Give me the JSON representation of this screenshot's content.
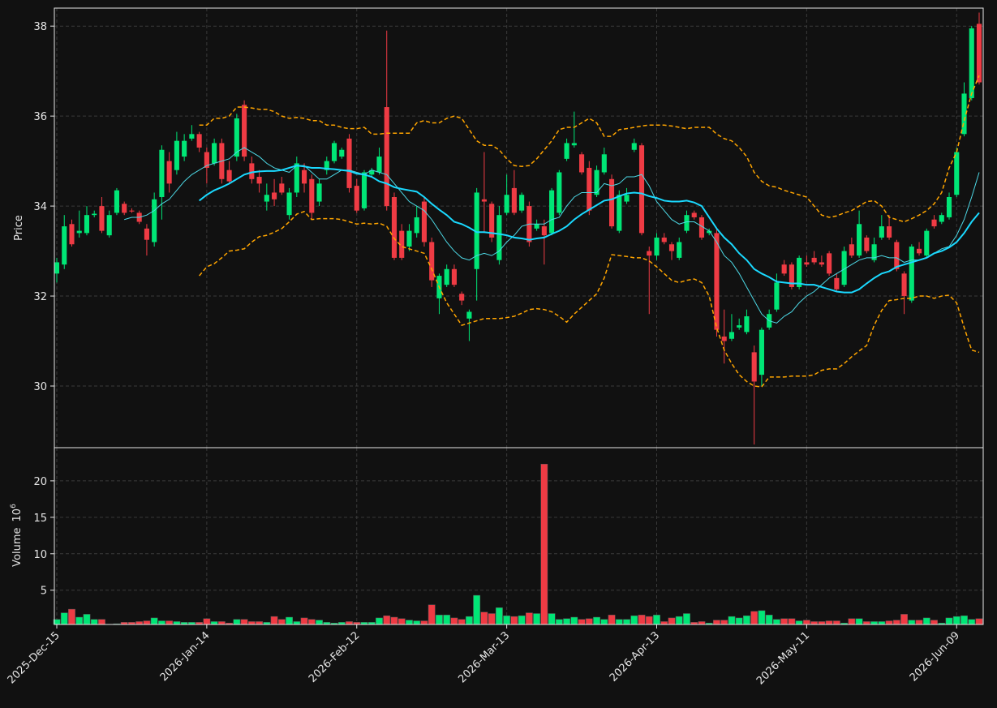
{
  "chart_data": {
    "type": "candlestick",
    "ylabel": "Price",
    "grid": true,
    "up_color": "#00e676",
    "down_color": "#ef3b44",
    "ylim": [
      28.63,
      38.4
    ],
    "yticks": [
      30,
      32,
      34,
      36,
      38
    ],
    "categories": [
      "2025-Dec-15",
      null,
      null,
      null,
      null,
      null,
      null,
      null,
      null,
      null,
      null,
      null,
      null,
      null,
      null,
      null,
      null,
      null,
      null,
      null,
      "2026-Jan-14",
      null,
      null,
      null,
      null,
      null,
      null,
      null,
      null,
      null,
      null,
      null,
      null,
      null,
      null,
      null,
      null,
      null,
      null,
      null,
      "2026-Feb-12",
      null,
      null,
      null,
      null,
      null,
      null,
      null,
      null,
      null,
      null,
      null,
      null,
      null,
      null,
      null,
      null,
      null,
      null,
      null,
      "2026-Mar-13",
      null,
      null,
      null,
      null,
      null,
      null,
      null,
      null,
      null,
      null,
      null,
      null,
      null,
      null,
      null,
      null,
      null,
      null,
      null,
      "2026-Apr-13",
      null,
      null,
      null,
      null,
      null,
      null,
      null,
      null,
      null,
      null,
      null,
      null,
      null,
      null,
      null,
      null,
      null,
      null,
      null,
      "2026-May-11",
      null,
      null,
      null,
      null,
      null,
      null,
      null,
      null,
      null,
      null,
      null,
      null,
      null,
      null,
      null,
      null,
      null,
      null,
      null,
      "2026-Jun-09",
      null,
      null,
      null
    ],
    "open": [
      32.5,
      32.7,
      33.6,
      33.4,
      33.4,
      33.8,
      34.0,
      33.35,
      33.85,
      34.05,
      33.9,
      33.85,
      33.5,
      33.2,
      34.2,
      35.0,
      34.8,
      35.1,
      35.5,
      35.6,
      35.2,
      34.95,
      35.4,
      34.8,
      35.1,
      36.25,
      34.95,
      34.65,
      34.1,
      34.3,
      34.5,
      33.8,
      34.3,
      34.8,
      34.6,
      34.1,
      34.8,
      35.0,
      35.1,
      35.5,
      34.45,
      33.95,
      34.7,
      34.75,
      36.2,
      34.2,
      33.45,
      33.1,
      33.4,
      34.1,
      33.2,
      31.95,
      32.25,
      32.6,
      32.05,
      31.5,
      32.6,
      34.15,
      34.05,
      32.8,
      33.85,
      34.4,
      33.9,
      34.0,
      33.5,
      33.55,
      33.4,
      33.85,
      35.05,
      35.35,
      35.15,
      34.85,
      34.25,
      34.75,
      34.6,
      33.45,
      34.1,
      35.25,
      35.35,
      33.0,
      32.9,
      33.3,
      33.15,
      32.85,
      33.45,
      33.85,
      33.75,
      33.4,
      33.4,
      31.1,
      31.05,
      31.3,
      31.2,
      30.75,
      30.25,
      31.3,
      31.7,
      32.7,
      32.7,
      32.2,
      32.75,
      32.85,
      32.75,
      32.95,
      32.4,
      32.25,
      33.15,
      32.9,
      33.3,
      32.8,
      33.3,
      33.55,
      33.2,
      32.5,
      31.9,
      33.05,
      32.9,
      33.7,
      33.65,
      33.75,
      34.25,
      35.6,
      36.4,
      38.05
    ],
    "high": [
      32.85,
      33.8,
      33.7,
      33.9,
      34.0,
      33.9,
      34.2,
      33.9,
      34.4,
      34.1,
      33.95,
      33.9,
      33.6,
      34.3,
      35.35,
      35.2,
      35.65,
      35.6,
      35.8,
      35.65,
      35.3,
      35.5,
      35.5,
      35.0,
      36.05,
      36.35,
      35.1,
      34.8,
      34.5,
      34.6,
      34.65,
      34.4,
      35.1,
      34.95,
      34.7,
      34.6,
      35.1,
      35.45,
      35.3,
      35.6,
      34.6,
      34.8,
      34.85,
      35.3,
      37.9,
      34.3,
      33.6,
      33.6,
      34.0,
      34.2,
      33.3,
      32.5,
      32.7,
      32.7,
      32.1,
      31.7,
      34.4,
      35.2,
      34.1,
      34.0,
      34.7,
      34.8,
      34.3,
      34.1,
      33.7,
      33.7,
      34.4,
      34.8,
      35.5,
      36.1,
      35.2,
      35.0,
      34.9,
      35.3,
      34.7,
      34.35,
      34.4,
      35.5,
      35.4,
      33.1,
      33.4,
      33.4,
      33.2,
      33.3,
      33.9,
      33.9,
      33.8,
      33.5,
      33.5,
      31.7,
      31.6,
      31.5,
      31.7,
      30.9,
      31.3,
      31.7,
      32.5,
      32.8,
      32.75,
      32.9,
      32.9,
      33.0,
      32.9,
      33.0,
      32.5,
      33.1,
      33.3,
      33.9,
      33.35,
      33.3,
      33.8,
      33.8,
      33.25,
      32.55,
      33.15,
      33.2,
      33.5,
      33.8,
      33.85,
      34.3,
      35.3,
      36.75,
      38.0,
      38.3
    ],
    "low": [
      32.3,
      32.6,
      33.1,
      33.3,
      33.35,
      33.75,
      33.4,
      33.3,
      33.8,
      33.8,
      33.85,
      33.6,
      32.9,
      33.1,
      33.7,
      34.3,
      34.7,
      35.0,
      35.45,
      35.2,
      34.5,
      34.9,
      34.5,
      34.5,
      35.0,
      35.0,
      34.5,
      34.3,
      33.9,
      34.0,
      34.25,
      33.7,
      34.2,
      34.3,
      33.7,
      34.0,
      34.7,
      34.95,
      35.05,
      34.3,
      33.85,
      33.9,
      34.65,
      34.7,
      33.9,
      32.8,
      32.8,
      33.0,
      33.3,
      33.1,
      32.2,
      31.6,
      32.2,
      32.2,
      31.8,
      31.0,
      31.9,
      33.4,
      33.2,
      32.7,
      33.8,
      33.8,
      33.85,
      33.1,
      33.45,
      32.7,
      33.35,
      33.8,
      35.0,
      35.3,
      34.7,
      33.8,
      34.2,
      34.7,
      33.5,
      33.4,
      34.05,
      35.2,
      33.35,
      31.6,
      32.8,
      33.15,
      32.8,
      32.8,
      33.4,
      33.7,
      33.25,
      33.35,
      31.1,
      30.5,
      31.0,
      31.25,
      31.15,
      28.7,
      30.0,
      31.25,
      31.65,
      32.45,
      32.15,
      32.15,
      32.65,
      32.7,
      32.65,
      32.45,
      32.1,
      32.2,
      32.85,
      32.85,
      32.95,
      32.75,
      33.25,
      33.25,
      32.55,
      31.6,
      31.85,
      32.9,
      32.85,
      33.5,
      33.6,
      33.7,
      34.2,
      35.55,
      36.35,
      36.7
    ],
    "close": [
      32.75,
      33.55,
      33.15,
      33.45,
      33.8,
      33.83,
      33.45,
      33.8,
      34.35,
      33.85,
      33.88,
      33.65,
      33.25,
      34.15,
      35.25,
      34.5,
      35.45,
      35.45,
      35.6,
      35.3,
      34.85,
      35.4,
      34.6,
      34.55,
      35.95,
      35.1,
      34.6,
      34.5,
      34.25,
      34.15,
      34.3,
      34.3,
      34.95,
      34.5,
      33.85,
      34.5,
      35.0,
      35.4,
      35.25,
      34.4,
      33.9,
      34.75,
      34.8,
      35.1,
      34.0,
      32.85,
      32.85,
      33.45,
      33.75,
      33.2,
      32.35,
      32.45,
      32.6,
      32.25,
      31.9,
      31.65,
      34.3,
      34.1,
      33.3,
      33.8,
      34.25,
      33.85,
      34.25,
      33.2,
      33.6,
      33.35,
      34.35,
      34.75,
      35.4,
      35.4,
      34.75,
      33.9,
      34.8,
      35.15,
      33.55,
      34.25,
      34.25,
      35.4,
      33.4,
      32.9,
      33.3,
      33.2,
      33.0,
      33.2,
      33.8,
      33.75,
      33.3,
      33.45,
      31.25,
      31.0,
      31.2,
      31.35,
      31.55,
      30.1,
      31.25,
      31.6,
      32.3,
      32.5,
      32.2,
      32.85,
      32.7,
      32.75,
      32.7,
      32.5,
      32.15,
      33.0,
      32.9,
      33.6,
      33.0,
      33.15,
      33.55,
      33.3,
      32.6,
      32.0,
      33.1,
      32.95,
      33.45,
      33.55,
      33.8,
      34.2,
      35.2,
      36.5,
      37.95,
      36.75
    ],
    "overlays": [
      {
        "color": "#4dd9e6",
        "width": 1,
        "dashed": false,
        "values": [
          null,
          null,
          null,
          null,
          null,
          null,
          null,
          null,
          null,
          33.7,
          33.75,
          33.75,
          33.8,
          33.9,
          34.05,
          34.15,
          34.35,
          34.55,
          34.7,
          34.8,
          34.9,
          34.95,
          35.0,
          35.05,
          35.2,
          35.3,
          35.2,
          35.1,
          34.95,
          34.85,
          34.8,
          34.75,
          34.9,
          34.9,
          34.75,
          34.6,
          34.6,
          34.7,
          34.8,
          34.8,
          34.75,
          34.7,
          34.8,
          34.75,
          34.7,
          34.5,
          34.3,
          34.1,
          34.0,
          33.9,
          33.7,
          33.45,
          33.2,
          33.0,
          32.85,
          32.8,
          32.9,
          32.95,
          32.9,
          33.0,
          33.2,
          33.35,
          33.55,
          33.6,
          33.6,
          33.6,
          33.7,
          33.75,
          34.0,
          34.2,
          34.3,
          34.3,
          34.3,
          34.5,
          34.45,
          34.5,
          34.65,
          34.65,
          34.7,
          34.45,
          34.1,
          33.9,
          33.7,
          33.6,
          33.65,
          33.65,
          33.55,
          33.45,
          33.2,
          32.9,
          32.75,
          32.5,
          32.2,
          31.9,
          31.6,
          31.45,
          31.4,
          31.55,
          31.65,
          31.85,
          32.0,
          32.1,
          32.25,
          32.4,
          32.5,
          32.6,
          32.7,
          32.8,
          32.85,
          32.85,
          32.9,
          32.85,
          32.85,
          32.75,
          32.8,
          32.8,
          32.85,
          32.95,
          33.05,
          33.1,
          33.35,
          33.7,
          34.2,
          34.75
        ]
      },
      {
        "color": "#1ad9ff",
        "width": 2,
        "dashed": false,
        "values": [
          null,
          null,
          null,
          null,
          null,
          null,
          null,
          null,
          null,
          null,
          null,
          null,
          null,
          null,
          null,
          null,
          null,
          null,
          null,
          34.12,
          34.25,
          34.35,
          34.42,
          34.5,
          34.6,
          34.7,
          34.75,
          34.77,
          34.78,
          34.78,
          34.8,
          34.85,
          34.9,
          34.88,
          34.85,
          34.85,
          34.83,
          34.82,
          34.8,
          34.78,
          34.72,
          34.7,
          34.65,
          34.55,
          34.5,
          34.42,
          34.38,
          34.35,
          34.32,
          34.2,
          34.05,
          33.92,
          33.8,
          33.65,
          33.6,
          33.52,
          33.42,
          33.42,
          33.4,
          33.38,
          33.35,
          33.3,
          33.28,
          33.25,
          33.28,
          33.3,
          33.38,
          33.45,
          33.55,
          33.7,
          33.82,
          33.92,
          34.02,
          34.12,
          34.15,
          34.22,
          34.28,
          34.3,
          34.28,
          34.22,
          34.18,
          34.12,
          34.1,
          34.1,
          34.12,
          34.08,
          34.0,
          33.75,
          33.5,
          33.3,
          33.15,
          32.95,
          32.8,
          32.6,
          32.5,
          32.42,
          32.32,
          32.3,
          32.28,
          32.28,
          32.25,
          32.25,
          32.2,
          32.15,
          32.1,
          32.08,
          32.08,
          32.15,
          32.28,
          32.4,
          32.5,
          32.55,
          32.65,
          32.7,
          32.75,
          32.8,
          32.85,
          32.95,
          33.0,
          33.08,
          33.2,
          33.4,
          33.65,
          33.85
        ]
      },
      {
        "color": "#ffa500",
        "width": 1.5,
        "dashed": true,
        "values": [
          null,
          null,
          null,
          null,
          null,
          null,
          null,
          null,
          null,
          null,
          null,
          null,
          null,
          null,
          null,
          null,
          null,
          null,
          null,
          35.8,
          35.8,
          35.95,
          35.95,
          36.0,
          36.2,
          36.2,
          36.18,
          36.15,
          36.15,
          36.1,
          36.0,
          35.95,
          35.97,
          35.95,
          35.9,
          35.9,
          35.8,
          35.8,
          35.75,
          35.72,
          35.72,
          35.75,
          35.6,
          35.6,
          35.62,
          35.62,
          35.62,
          35.62,
          35.85,
          35.9,
          35.85,
          35.85,
          35.95,
          36.0,
          35.95,
          35.7,
          35.45,
          35.35,
          35.35,
          35.25,
          35.05,
          34.9,
          34.88,
          34.9,
          35.05,
          35.25,
          35.45,
          35.7,
          35.75,
          35.75,
          35.85,
          35.95,
          35.85,
          35.55,
          35.55,
          35.7,
          35.72,
          35.75,
          35.78,
          35.8,
          35.8,
          35.8,
          35.78,
          35.75,
          35.72,
          35.75,
          35.75,
          35.75,
          35.6,
          35.5,
          35.45,
          35.3,
          35.1,
          34.75,
          34.55,
          34.45,
          34.42,
          34.35,
          34.3,
          34.25,
          34.2,
          34.0,
          33.8,
          33.75,
          33.78,
          33.85,
          33.9,
          34.0,
          34.1,
          34.12,
          34.0,
          33.75,
          33.7,
          33.65,
          33.72,
          33.8,
          33.9,
          34.05,
          34.3,
          34.85,
          35.2,
          35.9,
          36.5,
          36.9
        ]
      },
      {
        "color": "#ffa500",
        "width": 1.5,
        "dashed": true,
        "values": [
          null,
          null,
          null,
          null,
          null,
          null,
          null,
          null,
          null,
          null,
          null,
          null,
          null,
          null,
          null,
          null,
          null,
          null,
          null,
          32.45,
          32.65,
          32.72,
          32.85,
          33.0,
          33.02,
          33.05,
          33.2,
          33.32,
          33.35,
          33.42,
          33.5,
          33.65,
          33.82,
          33.88,
          33.7,
          33.72,
          33.72,
          33.72,
          33.7,
          33.65,
          33.6,
          33.62,
          33.6,
          33.62,
          33.55,
          33.28,
          33.1,
          33.05,
          33.0,
          32.95,
          32.6,
          32.2,
          31.85,
          31.6,
          31.35,
          31.4,
          31.45,
          31.5,
          31.5,
          31.5,
          31.52,
          31.55,
          31.62,
          31.7,
          31.72,
          31.7,
          31.65,
          31.55,
          31.42,
          31.6,
          31.75,
          31.9,
          32.05,
          32.4,
          32.92,
          32.9,
          32.88,
          32.85,
          32.85,
          32.78,
          32.65,
          32.5,
          32.35,
          32.3,
          32.35,
          32.38,
          32.3,
          32.0,
          31.3,
          30.8,
          30.5,
          30.25,
          30.1,
          30.0,
          29.98,
          30.2,
          30.2,
          30.2,
          30.22,
          30.22,
          30.22,
          30.25,
          30.35,
          30.38,
          30.38,
          30.5,
          30.65,
          30.78,
          30.9,
          31.35,
          31.68,
          31.9,
          31.92,
          31.95,
          31.95,
          32.0,
          32.0,
          31.95,
          32.0,
          32.02,
          31.85,
          31.3,
          30.8,
          30.75
        ]
      }
    ],
    "volume": {
      "ylabel": "Volume",
      "scale_base": 10,
      "scale_exponent": 6,
      "ylim": [
        0.3,
        24.55
      ],
      "yticks": [
        5,
        10,
        15,
        20
      ],
      "values": [
        1.0,
        1.9,
        2.4,
        1.3,
        1.7,
        1.0,
        1.0,
        0.3,
        0.4,
        0.6,
        0.6,
        0.7,
        0.8,
        1.2,
        0.8,
        0.8,
        0.7,
        0.6,
        0.6,
        0.6,
        1.1,
        0.7,
        0.7,
        0.5,
        1.0,
        1.0,
        0.7,
        0.7,
        0.6,
        1.4,
        1.0,
        1.3,
        0.7,
        1.2,
        1.0,
        0.9,
        0.6,
        0.5,
        0.6,
        0.7,
        0.6,
        0.6,
        0.6,
        1.2,
        1.5,
        1.3,
        1.1,
        0.9,
        0.8,
        0.8,
        3.0,
        1.6,
        1.6,
        1.2,
        1.0,
        1.4,
        4.3,
        2.0,
        1.8,
        2.6,
        1.5,
        1.4,
        1.5,
        1.9,
        1.8,
        22.3,
        1.8,
        1.0,
        1.1,
        1.3,
        1.0,
        1.1,
        1.3,
        1.0,
        1.6,
        1.0,
        1.0,
        1.5,
        1.6,
        1.4,
        1.6,
        0.7,
        1.2,
        1.4,
        1.8,
        0.6,
        0.7,
        0.5,
        0.9,
        0.9,
        1.4,
        1.2,
        1.5,
        2.1,
        2.2,
        1.6,
        1.0,
        1.1,
        1.1,
        0.8,
        0.9,
        0.7,
        0.7,
        0.8,
        0.8,
        0.5,
        1.1,
        1.1,
        0.7,
        0.7,
        0.7,
        0.8,
        0.9,
        1.7,
        0.9,
        0.9,
        1.2,
        0.9,
        0.5,
        1.2,
        1.4,
        1.5,
        1.0,
        1.1
      ]
    }
  }
}
